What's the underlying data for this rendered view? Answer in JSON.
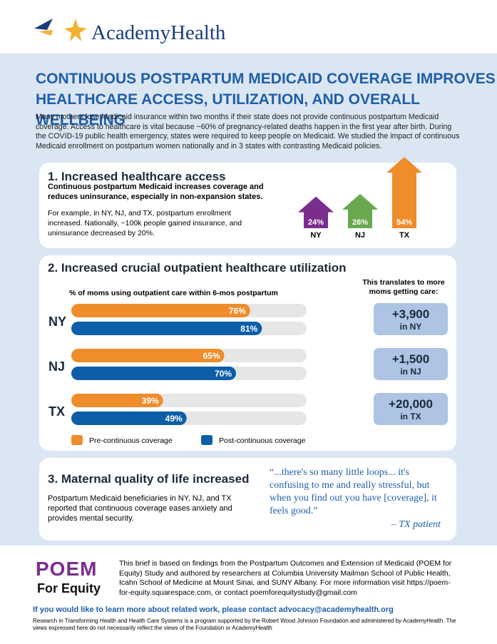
{
  "header": {
    "brand": "AcademyHealth"
  },
  "title": [
    "CONTINUOUS POSTPARTUM MEDICAID COVERAGE IMPROVES",
    "HEALTHCARE ACCESS, UTILIZATION, AND OVERALL WELLBEING"
  ],
  "intro": "Many mothers lose Medicaid insurance within two months if their state does not provide continuous postpartum Medicaid coverage.  Access to healthcare is vital because ~60% of pregnancy-related deaths happen in the first year after birth. During the COVID-19 public health emergency, states were required to keep people on Medicaid. We studied the impact of continuous Medicaid enrollment on postpartum women nationally and in 3 states with contrasting Medicaid policies.",
  "section1": {
    "heading": "1. Increased healthcare access",
    "lead": "Continuous postpartum Medicaid increases coverage and reduces uninsurance, especially in non-expansion states.",
    "body": "For example, in NY, NJ, and TX, postpartum enrollment increased. Nationally, ~100k people gained insurance, and uninsurance decreased by 20%.",
    "chart_data": {
      "type": "arrow",
      "categories": [
        "NY",
        "NJ",
        "TX"
      ],
      "values": [
        24,
        26,
        54
      ],
      "value_labels": [
        "24%",
        "26%",
        "54%"
      ],
      "colors": [
        "#7b2d8e",
        "#6aa84f",
        "#ef8c2b"
      ]
    }
  },
  "section2": {
    "heading": "2. Increased crucial outpatient healthcare utilization",
    "chart_data": {
      "type": "bar",
      "orientation": "horizontal",
      "title": "% of moms using outpatient care within 6-mos postpartum",
      "categories": [
        "NY",
        "NJ",
        "TX"
      ],
      "xlim": [
        0,
        100
      ],
      "series": [
        {
          "name": "Pre-continuous coverage",
          "color": "#ef8c2b",
          "values": [
            76,
            65,
            39
          ],
          "value_labels": [
            "76%",
            "65%",
            "39%"
          ]
        },
        {
          "name": "Post-continuous coverage",
          "color": "#0d5ea8",
          "values": [
            81,
            70,
            49
          ],
          "value_labels": [
            "81%",
            "70%",
            "49%"
          ]
        }
      ]
    },
    "side_title": "This translates to more moms getting care:",
    "boxes": [
      {
        "number": "+3,900",
        "label": "in NY"
      },
      {
        "number": "+1,500",
        "label": "in NJ"
      },
      {
        "number": "+20,000",
        "label": "in TX"
      }
    ]
  },
  "section3": {
    "heading": "3. Maternal quality of life increased",
    "body": "Postpartum Medicaid beneficiaries in NY, NJ, and TX reported that continuous coverage eases anxiety and provides mental security.",
    "quote": "“...there's so many little loops... it's confusing to me and really stressful, but when you find out you have [coverage], it feels good.”",
    "attribution": "– TX patient"
  },
  "footer": {
    "logo": "POEM",
    "logo_sub": "For Equity",
    "text": "This brief is based on findings from the Postpartum Outcomes and Extension of Medicaid (POEM for Equity) Study and authored by researchers at Columbia University Mailman School of Public Health, Icahn School of Medicine at Mount Sinai, and SUNY Albany. For more information visit https://poem-for-equity.squarespace.com, or contact poemforequitystudy@gmail.com",
    "contact": "If you would like to learn more about related work, please contact advocacy@academyhealth.org",
    "disclaimer": "Research in Transforming Health and Health Care Systems is a program supported by the Robert Wood Johnson Foundation and administered by AcademyHealth. The views expressed here do not necessarily reflect the views of the Foundation or AcademyHealth"
  }
}
